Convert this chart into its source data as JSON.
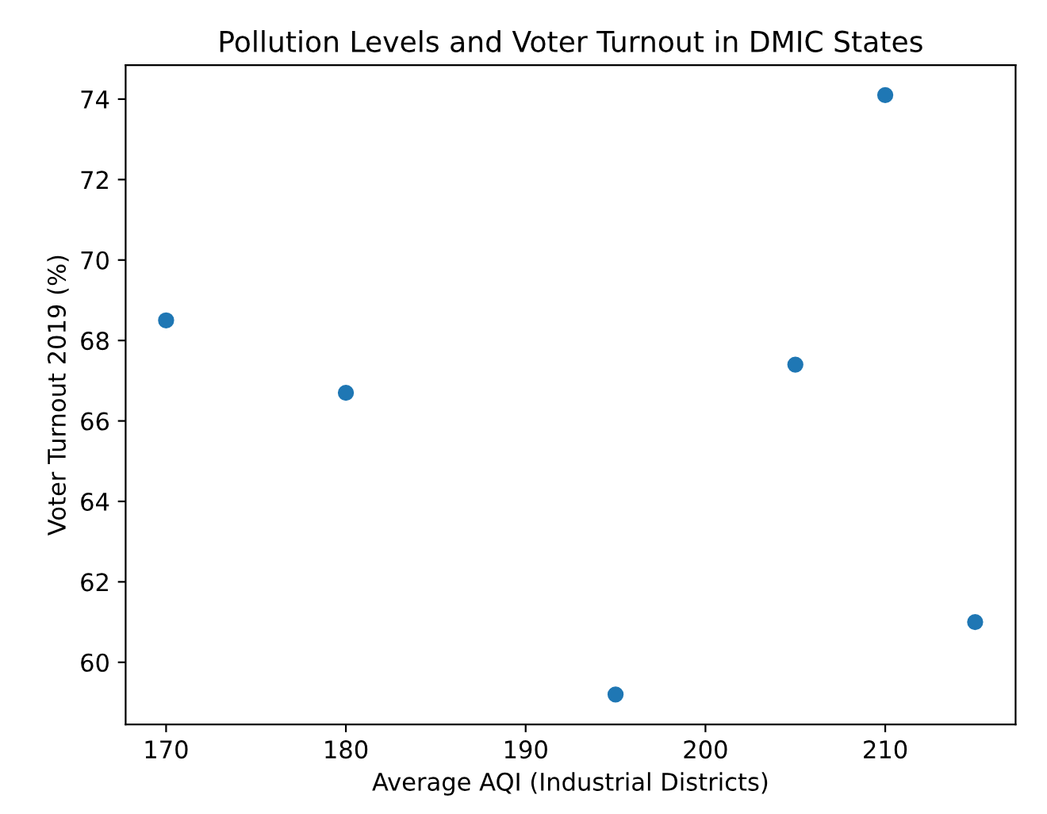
{
  "chart_data": {
    "type": "scatter",
    "title": "Pollution Levels and Voter Turnout in DMIC States",
    "xlabel": "Average AQI (Industrial Districts)",
    "ylabel": "Voter Turnout 2019 (%)",
    "x": [
      170,
      180,
      195,
      205,
      210,
      215
    ],
    "series": [
      {
        "color": "#1f77b4",
        "values": [
          68.5,
          66.7,
          59.2,
          67.4,
          74.1,
          61.0
        ]
      }
    ],
    "xlim": [
      167.75,
      217.25
    ],
    "ylim": [
      58.455,
      74.845
    ],
    "xticks": [
      170,
      180,
      190,
      200,
      210
    ],
    "yticks": [
      60,
      62,
      64,
      66,
      68,
      70,
      72,
      74
    ],
    "marker": "circle",
    "grid": false,
    "legend": false
  }
}
